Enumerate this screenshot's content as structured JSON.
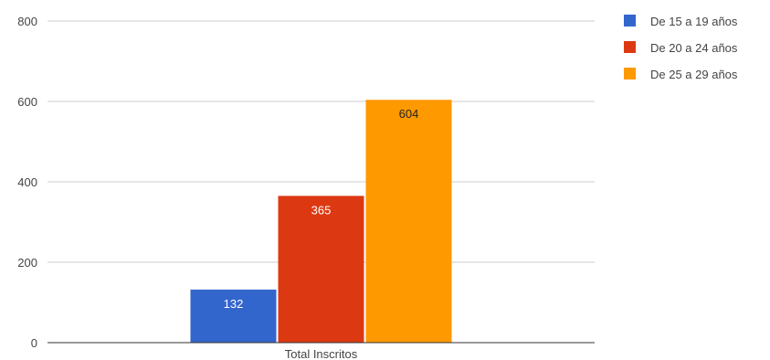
{
  "chart_data": {
    "type": "bar",
    "categories": [
      "Total Inscritos"
    ],
    "series": [
      {
        "name": "De 15 a 19 años",
        "values": [
          132
        ],
        "color": "#3366cc",
        "label_color": "#ffffff"
      },
      {
        "name": "De 20 a 24 años",
        "values": [
          365
        ],
        "color": "#dc3912",
        "label_color": "#ffffff"
      },
      {
        "name": "De 25 a 29 años",
        "values": [
          604
        ],
        "color": "#ff9900",
        "label_color": "#222222"
      }
    ],
    "yticks": [
      "0",
      "200",
      "400",
      "600",
      "800"
    ],
    "ylim": [
      0,
      800
    ],
    "grid": true,
    "legend_position": "right",
    "gridline_color": "#cccccc",
    "baseline_color": "#333333"
  }
}
